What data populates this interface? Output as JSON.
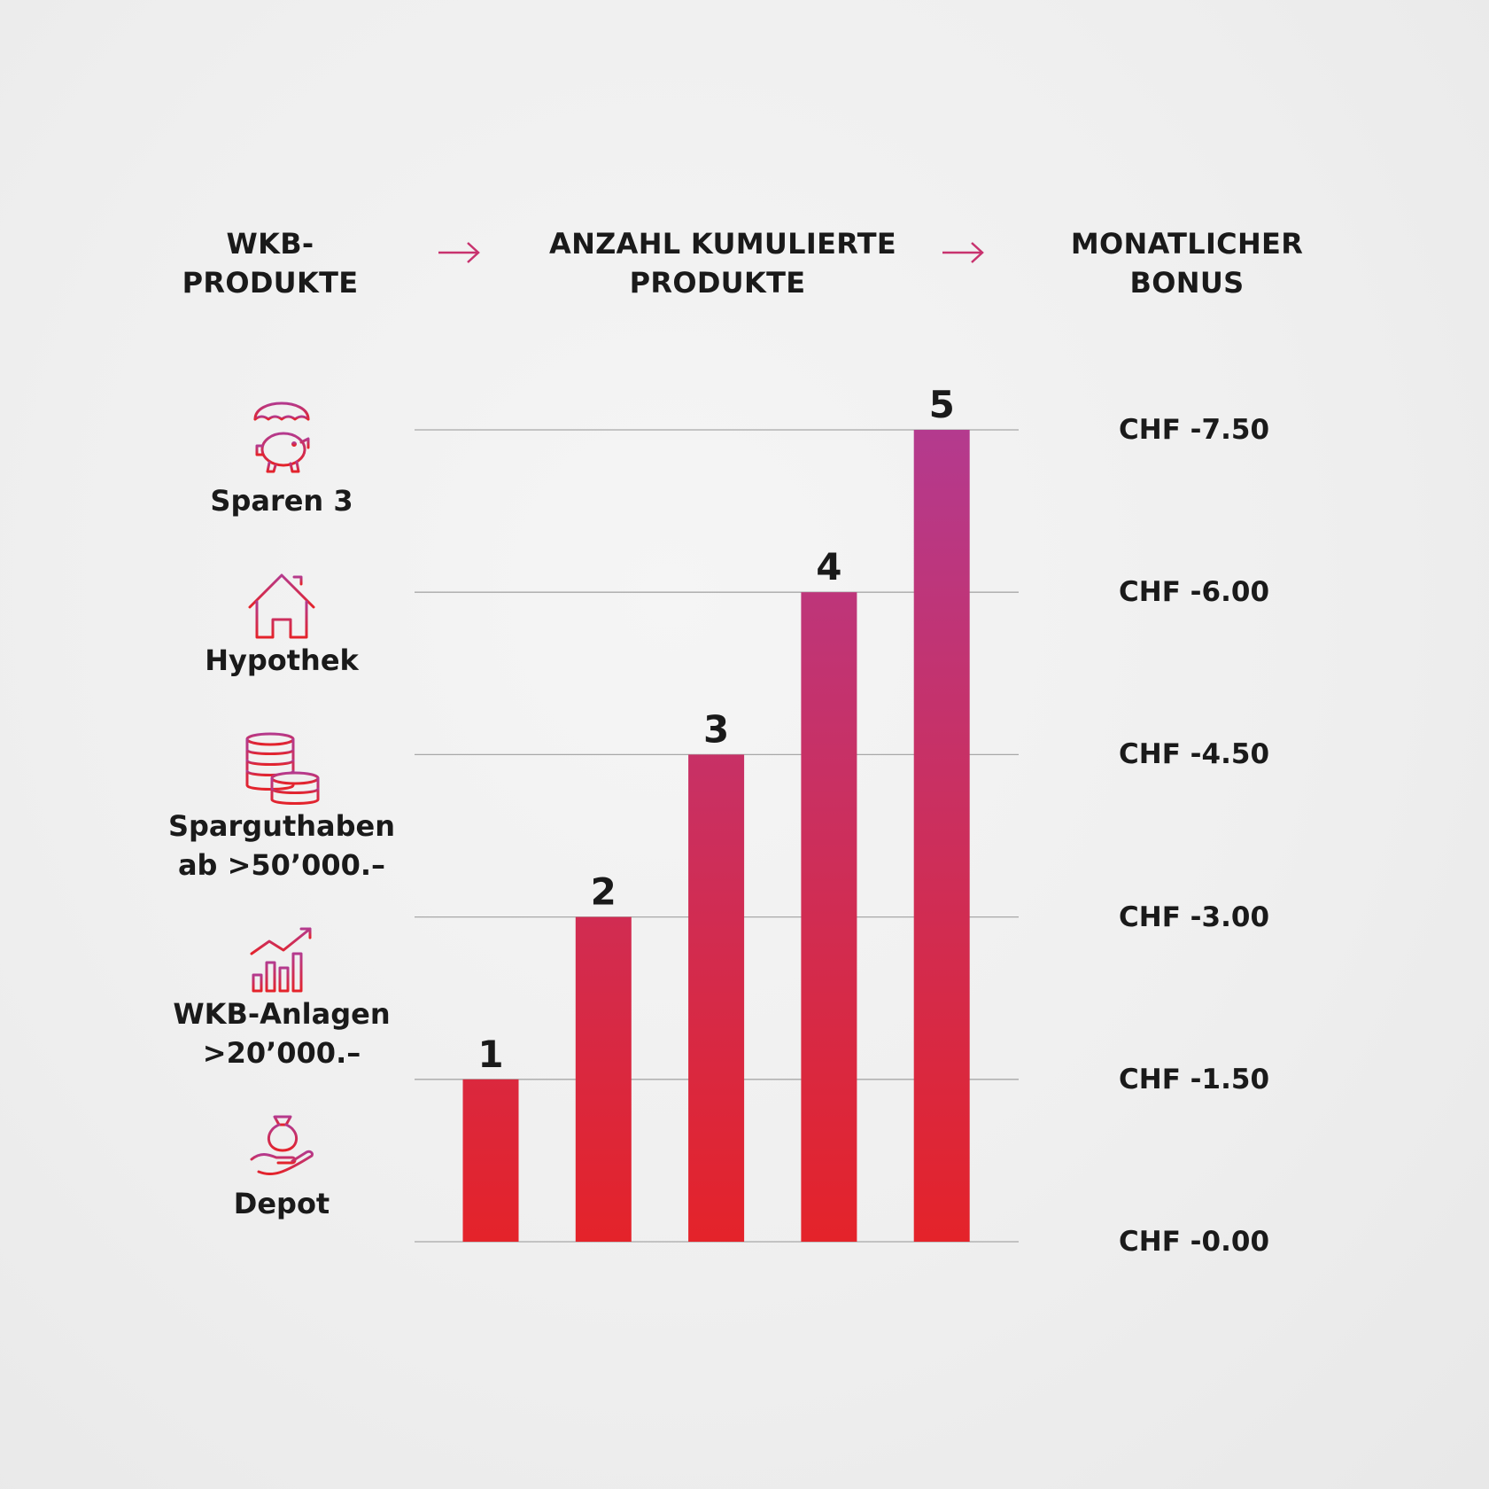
{
  "header": {
    "left": [
      "WKB-",
      "PRODUKTE"
    ],
    "center": [
      "ANZAHL KUMULIERTE",
      "PRODUKTE"
    ],
    "right": [
      "MONATLICHER",
      "BONUS"
    ]
  },
  "colors": {
    "accent_red": "#e4232a",
    "accent_magenta": "#b43a8e",
    "text": "#1a1a1a",
    "grid": "#a8a8a8"
  },
  "products": [
    {
      "icon": "umbrella-piggy-bank-icon",
      "lines": [
        "Sparen 3"
      ]
    },
    {
      "icon": "house-icon",
      "lines": [
        "Hypothek"
      ]
    },
    {
      "icon": "coin-stacks-icon",
      "lines": [
        "Sparguthaben",
        "ab >50’000.–"
      ]
    },
    {
      "icon": "growth-chart-icon",
      "lines": [
        "WKB-Anlagen",
        ">20’000.–"
      ]
    },
    {
      "icon": "hand-money-bag-icon",
      "lines": [
        "Depot"
      ]
    }
  ],
  "chart_data": {
    "type": "bar",
    "categories": [
      "1",
      "2",
      "3",
      "4",
      "5"
    ],
    "values": [
      1,
      2,
      3,
      4,
      5
    ],
    "data_labels": [
      "1",
      "2",
      "3",
      "4",
      "5"
    ],
    "ylim": [
      0,
      5
    ],
    "grid": true,
    "y_tick_labels": [
      "CHF -0.00",
      "CHF -1.50",
      "CHF -3.00",
      "CHF -4.50",
      "CHF -6.00",
      "CHF -7.50"
    ]
  }
}
